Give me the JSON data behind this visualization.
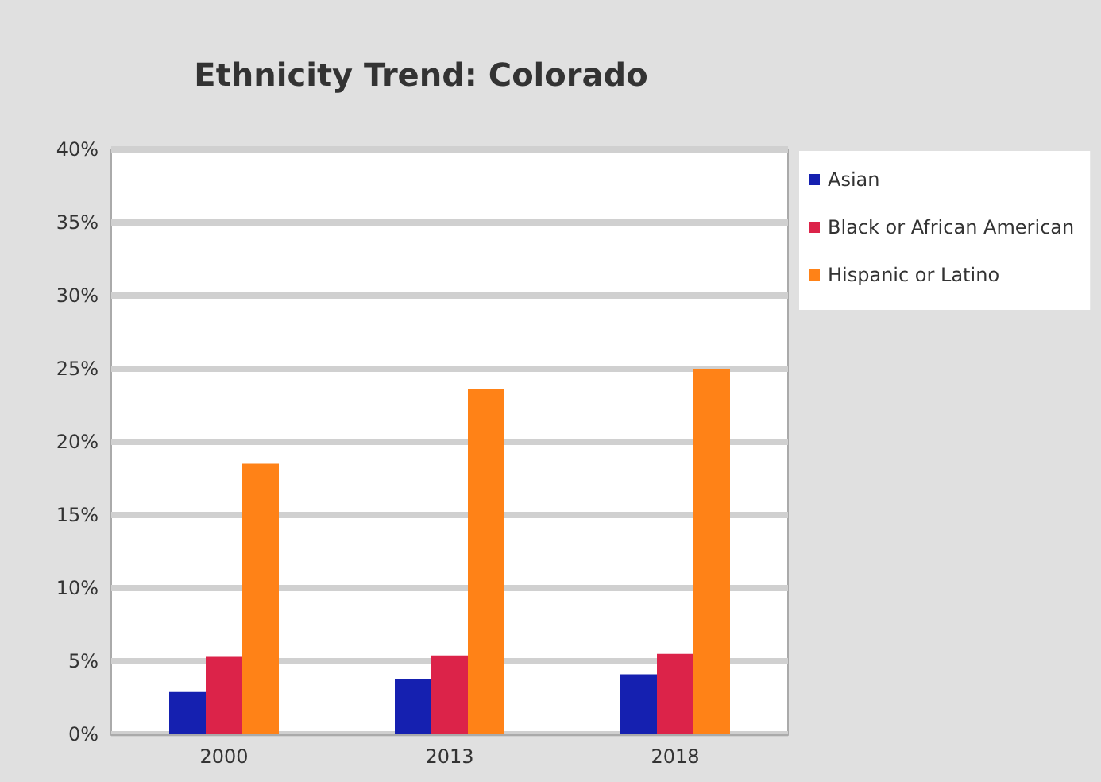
{
  "chart_data": {
    "type": "bar",
    "title": "Ethnicity Trend: Colorado",
    "categories": [
      "2000",
      "2013",
      "2018"
    ],
    "series": [
      {
        "name": "Asian",
        "color": "#1520b0",
        "values": [
          2.9,
          3.8,
          4.1
        ]
      },
      {
        "name": "Black or African American",
        "color": "#dc2349",
        "values": [
          5.3,
          5.4,
          5.5
        ]
      },
      {
        "name": "Hispanic or Latino",
        "color": "#ff8217",
        "values": [
          18.5,
          23.6,
          25.0
        ]
      }
    ],
    "ylim": [
      0,
      40
    ],
    "yticks": [
      {
        "value": 0,
        "label": "0%"
      },
      {
        "value": 5,
        "label": "5%"
      },
      {
        "value": 10,
        "label": "10%"
      },
      {
        "value": 15,
        "label": "15%"
      },
      {
        "value": 20,
        "label": "20%"
      },
      {
        "value": 25,
        "label": "25%"
      },
      {
        "value": 30,
        "label": "30%"
      },
      {
        "value": 35,
        "label": "35%"
      },
      {
        "value": 40,
        "label": "40%"
      }
    ],
    "grid": true,
    "legend": "right"
  }
}
